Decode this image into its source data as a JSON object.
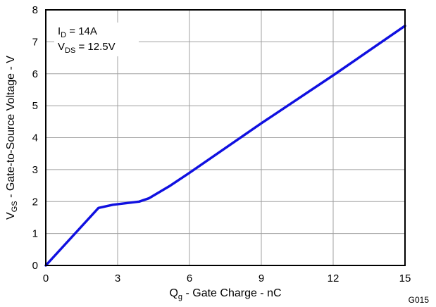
{
  "chart_data": {
    "type": "line",
    "title": "",
    "xlabel": {
      "main": "Q",
      "sub": "g",
      "rest": " - Gate Charge - nC"
    },
    "ylabel": {
      "main": "V",
      "sub": "GS",
      "rest": " - Gate-to-Source Voltage - V"
    },
    "xlim": [
      0,
      15
    ],
    "ylim": [
      0,
      8
    ],
    "xticks": [
      "0",
      "3",
      "6",
      "9",
      "12",
      "15"
    ],
    "yticks": [
      "0",
      "1",
      "2",
      "3",
      "4",
      "5",
      "6",
      "7",
      "8"
    ],
    "grid": true,
    "series": [
      {
        "color": "#1010e0",
        "x": [
          0,
          2.2,
          2.8,
          3.9,
          4.3,
          5.2,
          6.0,
          9.0,
          12.0,
          15.0
        ],
        "y": [
          0,
          1.8,
          1.9,
          2.0,
          2.1,
          2.5,
          2.9,
          4.45,
          5.95,
          7.5
        ]
      }
    ],
    "annotations": [
      {
        "main": "I",
        "sub": "D",
        "rest": " = 14A"
      },
      {
        "main": "V",
        "sub": "DS",
        "rest": " = 12.5V"
      }
    ],
    "figure_id": "G015"
  }
}
